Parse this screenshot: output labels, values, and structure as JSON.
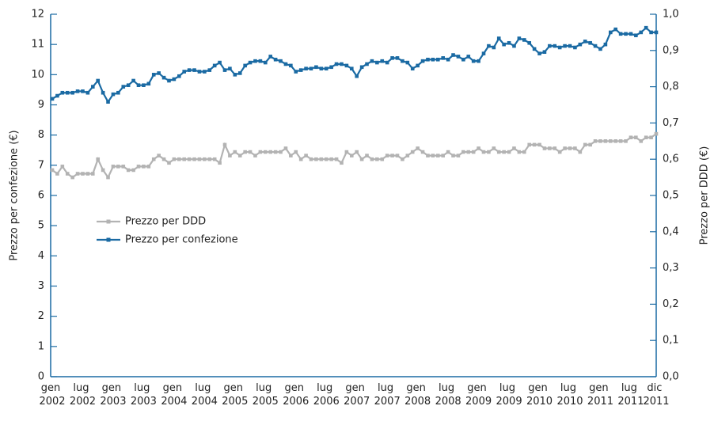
{
  "chart_data": {
    "type": "line",
    "y_label": "Prezzo per confezione (€)",
    "y2_label": "Prezzo per DDD (€)",
    "categories": [
      "gen 2002",
      null,
      null,
      null,
      null,
      null,
      "lug 2002",
      null,
      null,
      null,
      null,
      null,
      "gen 2003",
      null,
      null,
      null,
      null,
      null,
      "lug 2003",
      null,
      null,
      null,
      null,
      null,
      "gen 2004",
      null,
      null,
      null,
      null,
      null,
      "lug 2004",
      null,
      null,
      null,
      null,
      null,
      "gen 2005",
      null,
      null,
      null,
      null,
      null,
      "lug 2005",
      null,
      null,
      null,
      null,
      null,
      "gen 2006",
      null,
      null,
      null,
      null,
      null,
      "lug 2006",
      null,
      null,
      null,
      null,
      null,
      "gen 2007",
      null,
      null,
      null,
      null,
      null,
      "lug 2007",
      null,
      null,
      null,
      null,
      null,
      "gen 2008",
      null,
      null,
      null,
      null,
      null,
      "lug 2008",
      null,
      null,
      null,
      null,
      null,
      "gen 2009",
      null,
      null,
      null,
      null,
      null,
      "lug 2009",
      null,
      null,
      null,
      null,
      null,
      "gen 2010",
      null,
      null,
      null,
      null,
      null,
      "lug 2010",
      null,
      null,
      null,
      null,
      null,
      "gen 2011",
      null,
      null,
      null,
      null,
      null,
      "lug 2011",
      null,
      null,
      null,
      null,
      "dic 2011"
    ],
    "series": [
      {
        "name": "Prezzo per DDD",
        "color": "#b3b3b3",
        "axis": "y2",
        "values": [
          0.57,
          0.56,
          0.58,
          0.56,
          0.55,
          0.56,
          0.56,
          0.56,
          0.56,
          0.6,
          0.57,
          0.55,
          0.58,
          0.58,
          0.58,
          0.57,
          0.57,
          0.58,
          0.58,
          0.58,
          0.6,
          0.61,
          0.6,
          0.59,
          0.6,
          0.6,
          0.6,
          0.6,
          0.6,
          0.6,
          0.6,
          0.6,
          0.6,
          0.59,
          0.64,
          0.61,
          0.62,
          0.61,
          0.62,
          0.62,
          0.61,
          0.62,
          0.62,
          0.62,
          0.62,
          0.62,
          0.63,
          0.61,
          0.62,
          0.6,
          0.61,
          0.6,
          0.6,
          0.6,
          0.6,
          0.6,
          0.6,
          0.59,
          0.62,
          0.61,
          0.62,
          0.6,
          0.61,
          0.6,
          0.6,
          0.6,
          0.61,
          0.61,
          0.61,
          0.6,
          0.61,
          0.62,
          0.63,
          0.62,
          0.61,
          0.61,
          0.61,
          0.61,
          0.62,
          0.61,
          0.61,
          0.62,
          0.62,
          0.62,
          0.63,
          0.62,
          0.62,
          0.63,
          0.62,
          0.62,
          0.62,
          0.63,
          0.62,
          0.62,
          0.64,
          0.64,
          0.64,
          0.63,
          0.63,
          0.63,
          0.62,
          0.63,
          0.63,
          0.63,
          0.62,
          0.64,
          0.64,
          0.65,
          0.65,
          0.65,
          0.65,
          0.65,
          0.65,
          0.65,
          0.66,
          0.66,
          0.65,
          0.66,
          0.66,
          0.67
        ]
      },
      {
        "name": "Prezzo per confezione",
        "color": "#1a6aa3",
        "values": [
          9.2,
          9.3,
          9.4,
          9.4,
          9.4,
          9.45,
          9.45,
          9.4,
          9.6,
          9.8,
          9.4,
          9.1,
          9.35,
          9.4,
          9.6,
          9.65,
          9.8,
          9.65,
          9.65,
          9.7,
          10.0,
          10.05,
          9.9,
          9.8,
          9.85,
          9.95,
          10.1,
          10.15,
          10.15,
          10.1,
          10.1,
          10.15,
          10.3,
          10.4,
          10.15,
          10.2,
          10.0,
          10.05,
          10.3,
          10.4,
          10.45,
          10.45,
          10.4,
          10.6,
          10.5,
          10.45,
          10.35,
          10.3,
          10.1,
          10.15,
          10.2,
          10.2,
          10.25,
          10.2,
          10.2,
          10.25,
          10.35,
          10.35,
          10.3,
          10.2,
          9.95,
          10.25,
          10.35,
          10.45,
          10.4,
          10.45,
          10.4,
          10.55,
          10.55,
          10.45,
          10.4,
          10.2,
          10.3,
          10.45,
          10.5,
          10.5,
          10.5,
          10.55,
          10.5,
          10.65,
          10.6,
          10.5,
          10.6,
          10.45,
          10.45,
          10.7,
          10.95,
          10.9,
          11.2,
          11.0,
          11.05,
          10.95,
          11.2,
          11.15,
          11.05,
          10.85,
          10.7,
          10.75,
          10.95,
          10.95,
          10.9,
          10.95,
          10.95,
          10.9,
          11.0,
          11.1,
          11.05,
          10.95,
          10.85,
          11.0,
          11.4,
          11.5,
          11.35,
          11.35,
          11.35,
          11.3,
          11.4,
          11.55,
          11.4,
          11.4
        ]
      }
    ],
    "ylim": [
      0,
      12
    ],
    "yticks": [
      0,
      1,
      2,
      3,
      4,
      5,
      6,
      7,
      8,
      9,
      10,
      11,
      12
    ],
    "y2lim": [
      0,
      1
    ],
    "y2ticks": [
      {
        "value": 0,
        "label": "0,0"
      },
      {
        "value": 0.1,
        "label": "0,1"
      },
      {
        "value": 0.2,
        "label": "0,2"
      },
      {
        "value": 0.3,
        "label": "0,3"
      },
      {
        "value": 0.4,
        "label": "0,4"
      },
      {
        "value": 0.5,
        "label": "0,5"
      },
      {
        "value": 0.6,
        "label": "0,6"
      },
      {
        "value": 0.7,
        "label": "0,7"
      },
      {
        "value": 0.8,
        "label": "0,8"
      },
      {
        "value": 0.9,
        "label": "0,9"
      },
      {
        "value": 1,
        "label": "1,0"
      }
    ],
    "axis_color": "#1a6aa3",
    "grid": false
  }
}
